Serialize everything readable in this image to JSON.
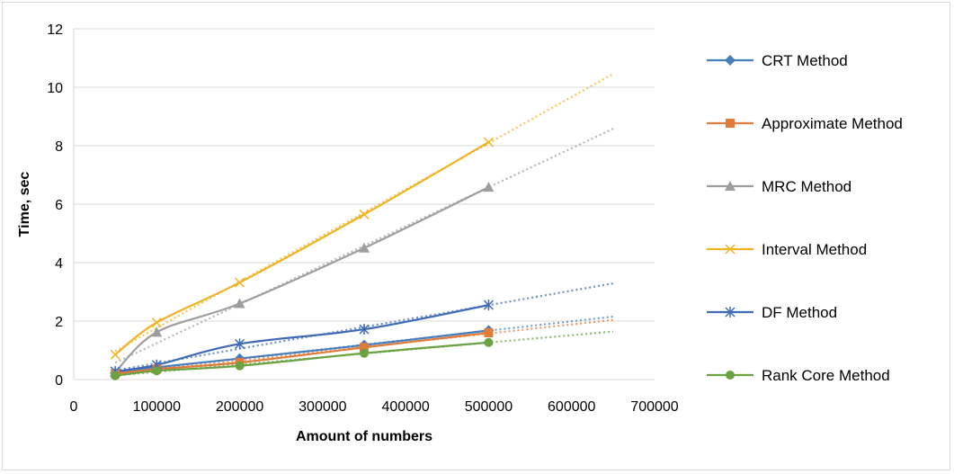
{
  "chart_data": {
    "type": "line",
    "title": "",
    "xlabel": "Amount of numbers",
    "ylabel": "Time, sec",
    "xlim": [
      0,
      700000
    ],
    "ylim": [
      0,
      12
    ],
    "x_ticks": [
      0,
      100000,
      200000,
      300000,
      400000,
      500000,
      600000,
      700000
    ],
    "x_tick_labels": [
      "0",
      "100000",
      "200000",
      "300000",
      "400000",
      "500000",
      "600000",
      "700000"
    ],
    "y_ticks": [
      0,
      2,
      4,
      6,
      8,
      10,
      12
    ],
    "y_tick_labels": [
      "0",
      "2",
      "4",
      "6",
      "8",
      "10",
      "12"
    ],
    "grid": "horizontal",
    "legend_position": "right",
    "trendlines": "dotted linear trendline per series, extended to 650000",
    "trend_x_end": 650000,
    "x": [
      50000,
      100000,
      200000,
      350000,
      500000
    ],
    "series": [
      {
        "name": "CRT Method",
        "values": [
          0.22,
          0.42,
          0.72,
          1.18,
          1.68
        ],
        "color": "#4a7ebb",
        "marker": "diamond"
      },
      {
        "name": "Approximate Method",
        "values": [
          0.2,
          0.36,
          0.58,
          1.1,
          1.6
        ],
        "color": "#e07b39",
        "marker": "square"
      },
      {
        "name": "MRC Method",
        "values": [
          0.25,
          1.62,
          2.6,
          4.5,
          6.58
        ],
        "color": "#9e9e9e",
        "marker": "triangle"
      },
      {
        "name": "Interval Method",
        "values": [
          0.85,
          1.95,
          3.32,
          5.65,
          8.12
        ],
        "color": "#f0b323",
        "marker": "x"
      },
      {
        "name": "DF Method",
        "values": [
          0.28,
          0.5,
          1.22,
          1.72,
          2.55
        ],
        "color": "#3f6bb5",
        "marker": "star"
      },
      {
        "name": "Rank Core Method",
        "values": [
          0.13,
          0.3,
          0.47,
          0.9,
          1.27
        ],
        "color": "#6ba242",
        "marker": "circle"
      }
    ]
  }
}
